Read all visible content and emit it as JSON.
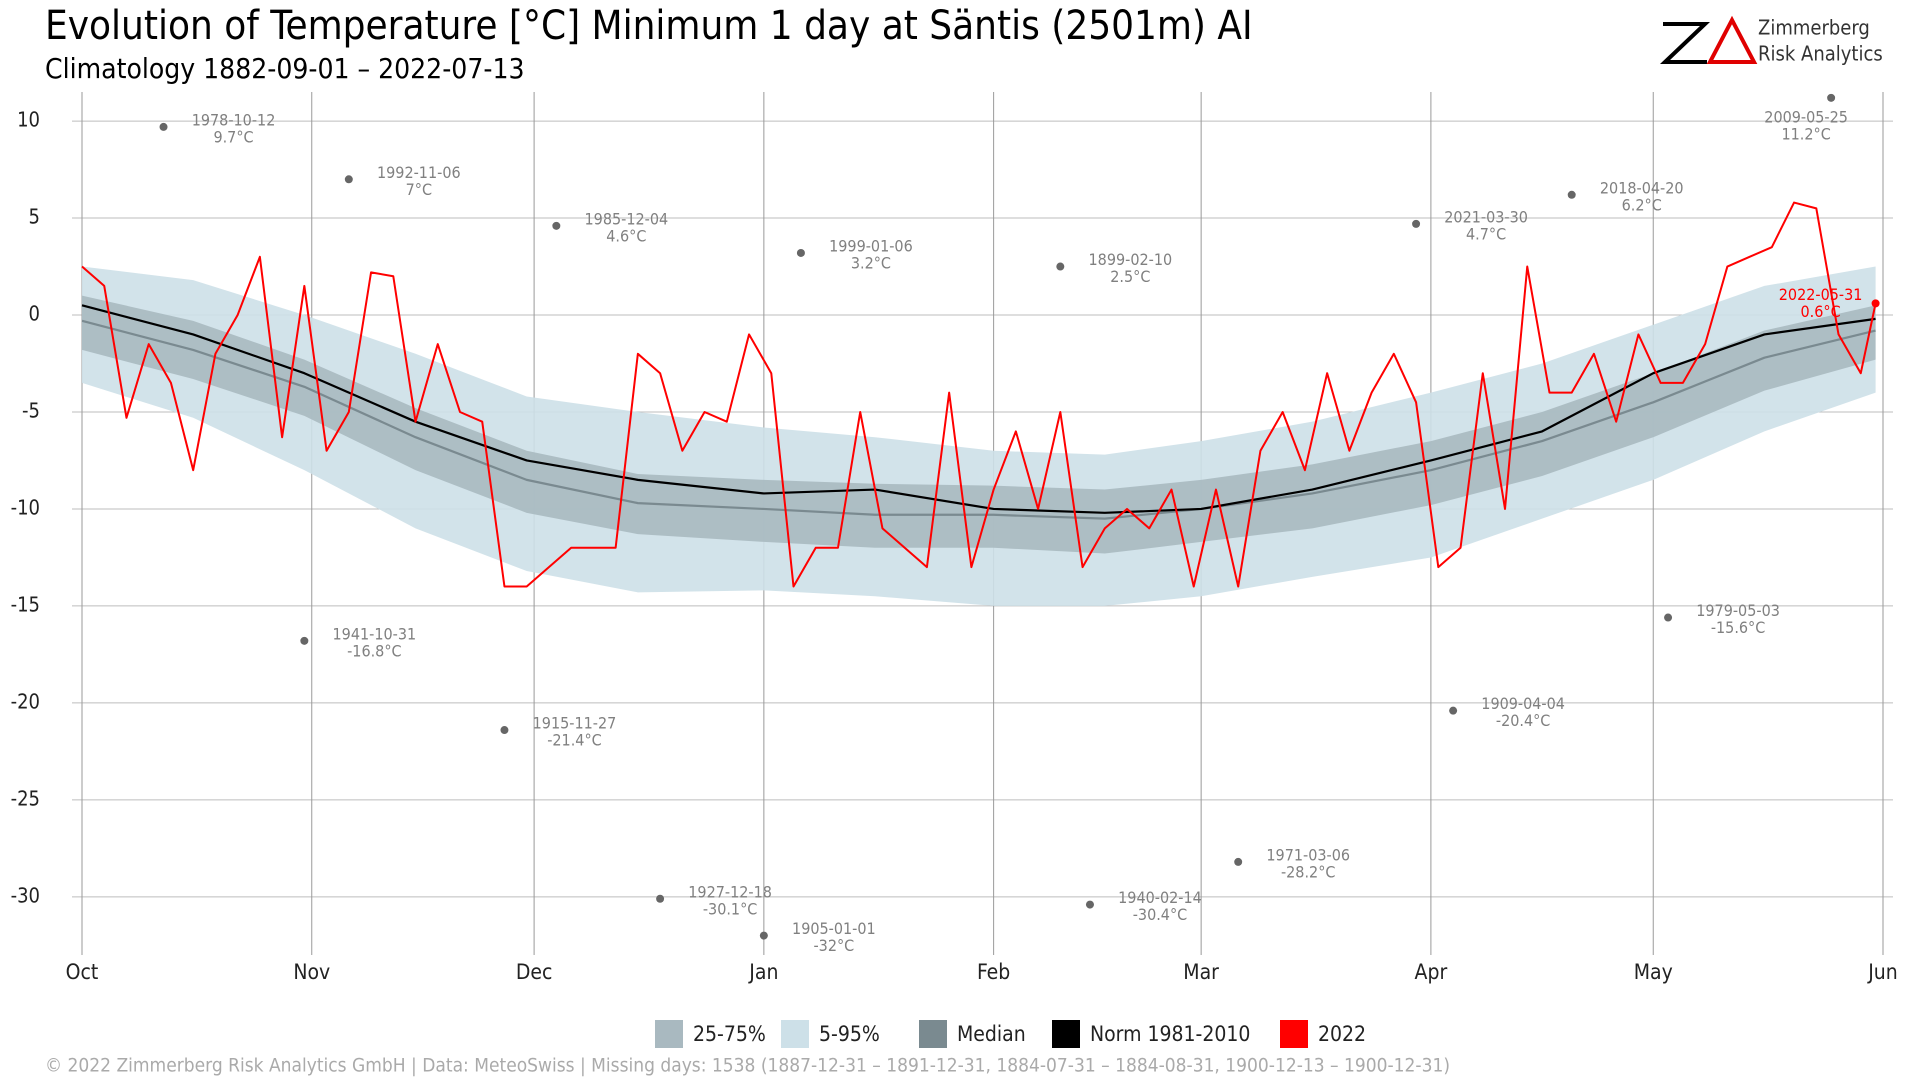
{
  "chart_data": {
    "type": "line",
    "title": "Evolution of Temperature [°C] Minimum 1 day at Säntis (2501m) AI",
    "subtitle": "Climatology 1882-09-01 – 2022-07-13",
    "brand": [
      "Zimmerberg",
      "Risk Analytics"
    ],
    "footer": "©  2022 Zimmerberg Risk Analytics GmbH | Data: MeteoSwiss | Missing days: 1538 (1887-12-31 – 1891-12-31, 1884-07-31 – 1884-08-31, 1900-12-13 – 1900-12-31)",
    "xlim": [
      0,
      243
    ],
    "xticks": [
      {
        "value": 0,
        "label": "Oct"
      },
      {
        "value": 31,
        "label": "Nov"
      },
      {
        "value": 61,
        "label": "Dec"
      },
      {
        "value": 92,
        "label": "Jan"
      },
      {
        "value": 123,
        "label": "Feb"
      },
      {
        "value": 151,
        "label": "Mar"
      },
      {
        "value": 182,
        "label": "Apr"
      },
      {
        "value": 212,
        "label": "May"
      },
      {
        "value": 243,
        "label": "Jun"
      }
    ],
    "ylim": [
      -33,
      11.5
    ],
    "yticks": [
      10,
      5,
      0,
      -5,
      -10,
      -15,
      -20,
      -25,
      -30
    ],
    "grid": true,
    "bands": [
      {
        "name": "5-95%",
        "color": "#cde0e8",
        "x": [
          0,
          15,
          30,
          45,
          60,
          75,
          92,
          107,
          123,
          138,
          151,
          166,
          182,
          197,
          212,
          227,
          242
        ],
        "lower": [
          -3.5,
          -5.3,
          -8,
          -11,
          -13.2,
          -14.3,
          -14.2,
          -14.5,
          -15,
          -15,
          -14.5,
          -13.5,
          -12.5,
          -10.5,
          -8.5,
          -6,
          -4
        ],
        "upper": [
          2.5,
          1.8,
          0,
          -2,
          -4.2,
          -5,
          -5.8,
          -6.3,
          -7,
          -7.2,
          -6.5,
          -5.5,
          -4,
          -2.5,
          -0.5,
          1.5,
          2.5
        ]
      },
      {
        "name": "25-75%",
        "color": "#a9b9c0",
        "x": [
          0,
          15,
          30,
          45,
          60,
          75,
          92,
          107,
          123,
          138,
          151,
          166,
          182,
          197,
          212,
          227,
          242
        ],
        "lower": [
          -1.8,
          -3.3,
          -5.2,
          -8,
          -10.2,
          -11.3,
          -11.7,
          -12,
          -12,
          -12.3,
          -11.7,
          -11,
          -9.8,
          -8.3,
          -6.3,
          -3.9,
          -2.3
        ],
        "upper": [
          1,
          -0.3,
          -2.3,
          -4.8,
          -7,
          -8.2,
          -8.5,
          -8.7,
          -8.8,
          -9,
          -8.5,
          -7.7,
          -6.5,
          -5,
          -3,
          -0.8,
          0.5
        ]
      }
    ],
    "series": [
      {
        "name": "Median",
        "color": "#7a8a90",
        "x": [
          0,
          15,
          30,
          45,
          60,
          75,
          92,
          107,
          123,
          138,
          151,
          166,
          182,
          197,
          212,
          227,
          242
        ],
        "values": [
          -0.3,
          -1.8,
          -3.7,
          -6.3,
          -8.5,
          -9.7,
          -10,
          -10.3,
          -10.3,
          -10.5,
          -10,
          -9.2,
          -8,
          -6.5,
          -4.5,
          -2.2,
          -0.8
        ]
      },
      {
        "name": "Norm 1981-2010",
        "color": "#000000",
        "x": [
          0,
          15,
          30,
          45,
          60,
          75,
          92,
          107,
          123,
          138,
          151,
          166,
          182,
          197,
          212,
          227,
          242
        ],
        "values": [
          0.5,
          -1,
          -3,
          -5.5,
          -7.5,
          -8.5,
          -9.2,
          -9,
          -10,
          -10.2,
          -10,
          -9,
          -7.5,
          -6,
          -3,
          -1,
          -0.2
        ]
      },
      {
        "name": "2022",
        "color": "#ff0000",
        "x": [
          0,
          3,
          6,
          9,
          12,
          15,
          18,
          21,
          24,
          27,
          30,
          33,
          36,
          39,
          42,
          45,
          48,
          51,
          54,
          57,
          60,
          63,
          66,
          69,
          72,
          75,
          78,
          81,
          84,
          87,
          90,
          93,
          96,
          99,
          102,
          105,
          108,
          111,
          114,
          117,
          120,
          123,
          126,
          129,
          132,
          135,
          138,
          141,
          144,
          147,
          150,
          153,
          156,
          159,
          162,
          165,
          168,
          171,
          174,
          177,
          180,
          183,
          186,
          189,
          192,
          195,
          198,
          201,
          204,
          207,
          210,
          213,
          216,
          219,
          222,
          225,
          228,
          231,
          234,
          237,
          240,
          242
        ],
        "values": [
          2.5,
          1.5,
          -5.3,
          -1.5,
          -3.5,
          -8,
          -2,
          0,
          3,
          -6.3,
          1.5,
          -7,
          -5,
          2.2,
          2,
          -5.5,
          -1.5,
          -5,
          -5.5,
          -14,
          -14,
          -13,
          -12,
          -12,
          -12,
          -2,
          -3,
          -7,
          -5,
          -5.5,
          -1,
          -3,
          -14,
          -12,
          -12,
          -5,
          -11,
          -12,
          -13,
          -4,
          -13,
          -9,
          -6,
          -10,
          -5,
          -13,
          -11,
          -10,
          -11,
          -9,
          -14,
          -9,
          -14,
          -7,
          -5,
          -8,
          -3,
          -7,
          -4,
          -2,
          -4.5,
          -13,
          -12,
          -3,
          -10,
          2.5,
          -4,
          -4,
          -2,
          -5.5,
          -1,
          -3.5,
          -3.5,
          -1.5,
          2.5,
          3,
          3.5,
          5.8,
          5.5,
          -1,
          -3,
          0.6
        ]
      }
    ],
    "records": [
      {
        "label": "1978-10-12",
        "x": 11,
        "value": 9.7,
        "value_label": "9.7°C",
        "color": "#808080"
      },
      {
        "label": "1992-11-06",
        "x": 36,
        "value": 7,
        "value_label": "7°C",
        "color": "#808080"
      },
      {
        "label": "1985-12-04",
        "x": 64,
        "value": 4.6,
        "value_label": "4.6°C",
        "color": "#808080"
      },
      {
        "label": "1999-01-06",
        "x": 97,
        "value": 3.2,
        "value_label": "3.2°C",
        "color": "#808080"
      },
      {
        "label": "1899-02-10",
        "x": 132,
        "value": 2.5,
        "value_label": "2.5°C",
        "color": "#808080"
      },
      {
        "label": "2021-03-30",
        "x": 180,
        "value": 4.7,
        "value_label": "4.7°C",
        "color": "#808080"
      },
      {
        "label": "2018-04-20",
        "x": 201,
        "value": 6.2,
        "value_label": "6.2°C",
        "color": "#808080"
      },
      {
        "label": "2009-05-25",
        "x": 236,
        "value": 11.2,
        "value_label": "11.2°C",
        "color": "#808080"
      },
      {
        "label": "1941-10-31",
        "x": 30,
        "value": -16.8,
        "value_label": "-16.8°C",
        "color": "#808080"
      },
      {
        "label": "1915-11-27",
        "x": 57,
        "value": -21.4,
        "value_label": "-21.4°C",
        "color": "#808080"
      },
      {
        "label": "1927-12-18",
        "x": 78,
        "value": -30.1,
        "value_label": "-30.1°C",
        "color": "#808080"
      },
      {
        "label": "1905-01-01",
        "x": 92,
        "value": -32,
        "value_label": "-32°C",
        "color": "#808080"
      },
      {
        "label": "1940-02-14",
        "x": 136,
        "value": -30.4,
        "value_label": "-30.4°C",
        "color": "#808080"
      },
      {
        "label": "1971-03-06",
        "x": 156,
        "value": -28.2,
        "value_label": "-28.2°C",
        "color": "#808080"
      },
      {
        "label": "1909-04-04",
        "x": 185,
        "value": -20.4,
        "value_label": "-20.4°C",
        "color": "#808080"
      },
      {
        "label": "1979-05-03",
        "x": 214,
        "value": -15.6,
        "value_label": "-15.6°C",
        "color": "#808080"
      },
      {
        "label": "2022-05-31",
        "x": 242,
        "value": 0.6,
        "value_label": "0.6°C",
        "color": "#ff0000"
      }
    ]
  }
}
